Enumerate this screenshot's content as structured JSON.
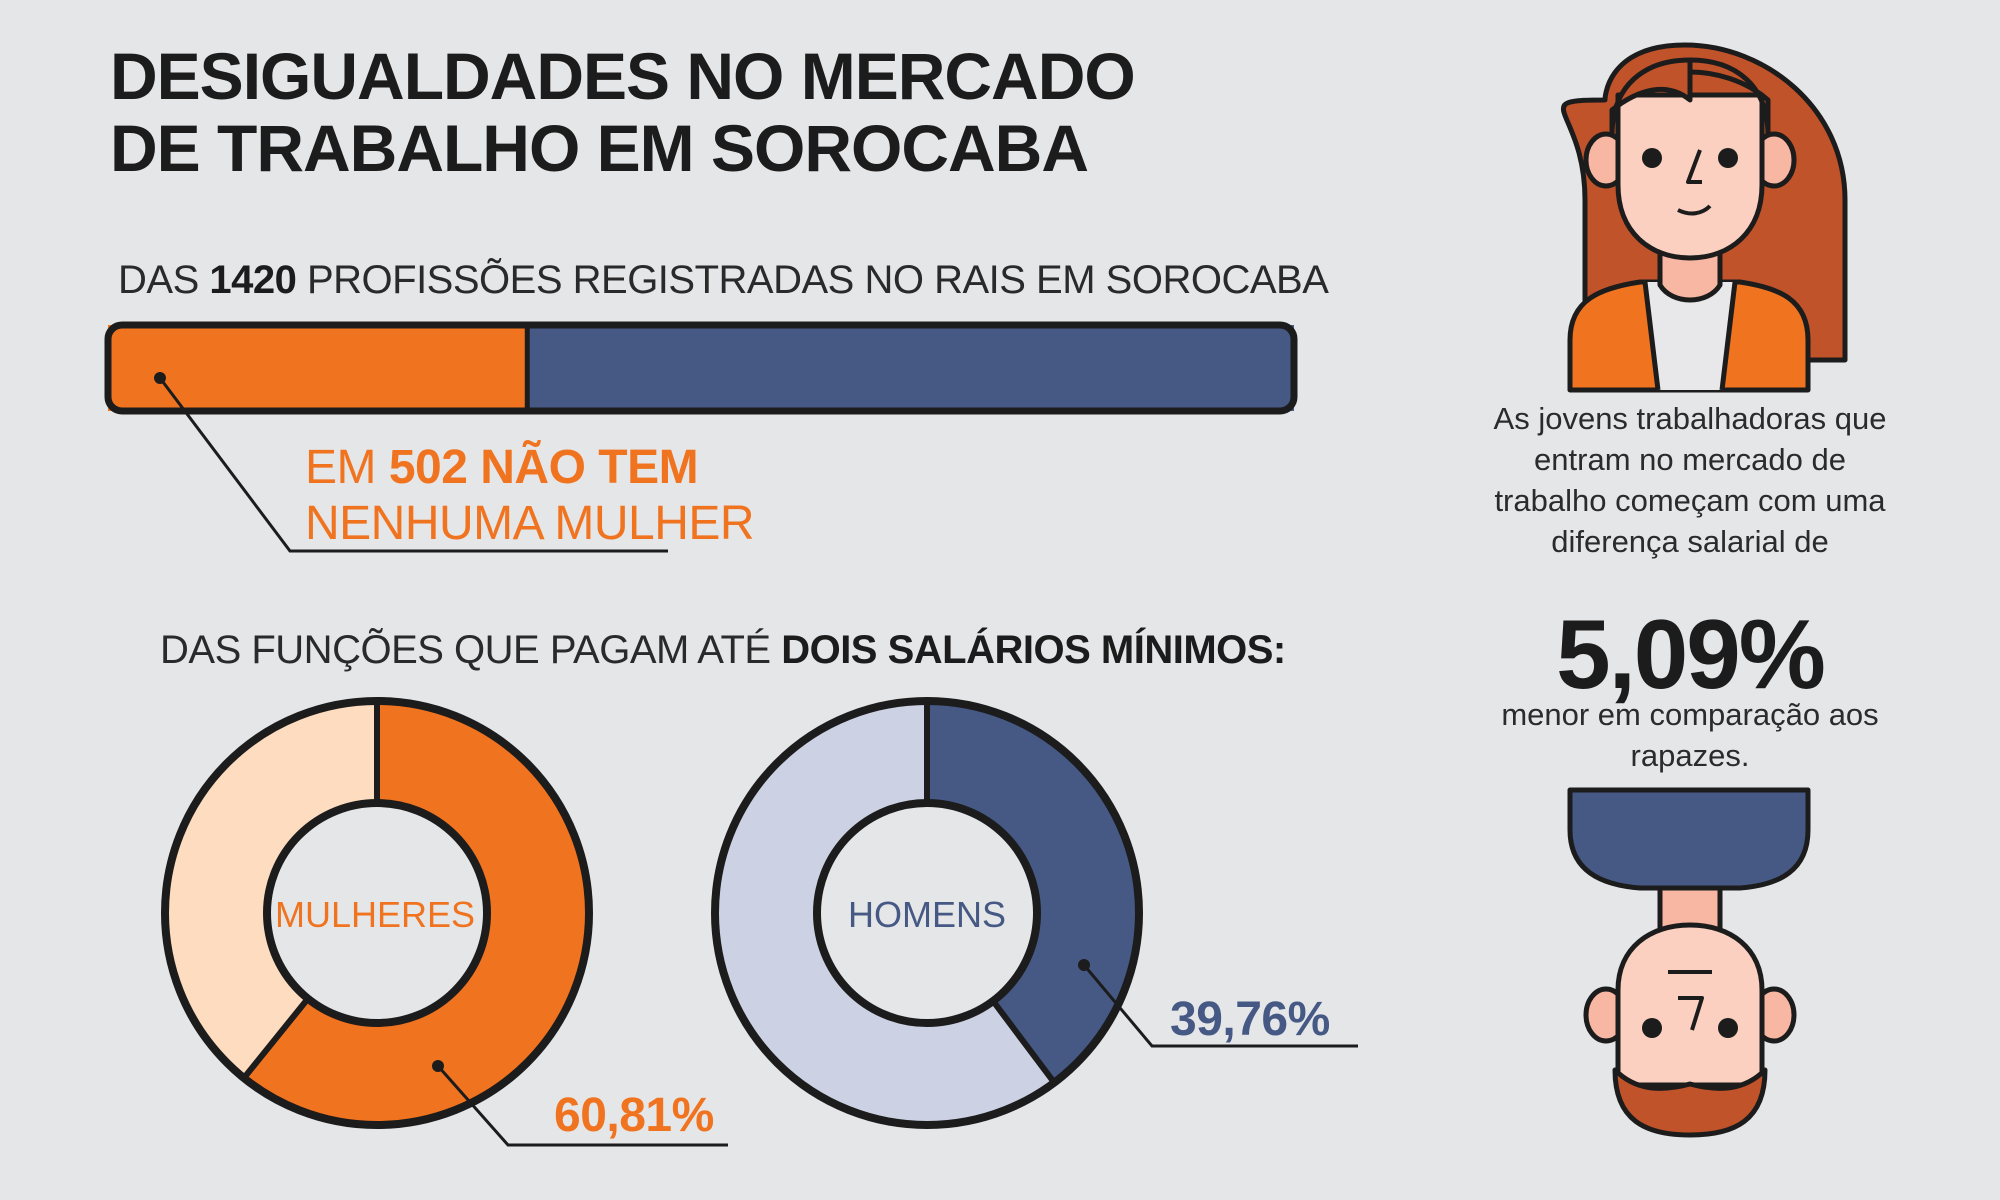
{
  "title": {
    "line1": "DESIGUALDADES NO MERCADO",
    "line2": "DE TRABALHO EM SOROCABA"
  },
  "professions": {
    "prefix": "DAS ",
    "total": "1420",
    "suffix": " PROFISSÕES REGISTRADAS NO  RAIS EM SOROCABA",
    "callout_prefix": "EM ",
    "callout_bold": "502 NÃO TEM",
    "callout_line2": "NENHUMA MULHER"
  },
  "functions": {
    "prefix": "DAS FUNÇÕES QUE PAGAM ATÉ ",
    "bold": "DOIS SALÁRIOS MÍNIMOS:"
  },
  "side": {
    "text": "As jovens trabalhadoras que entram no mercado de trabalho começam com uma diferença salarial de",
    "percent": "5,09%",
    "text2": "menor em comparação aos rapazes."
  },
  "colors": {
    "orange": "#f07320",
    "light_orange": "#fddcbf",
    "navy": "#465985",
    "light_navy": "#ccd2e3",
    "outline": "#1c1c1c"
  },
  "chart_data": [
    {
      "type": "bar",
      "title": "DAS 1420 PROFISSÕES REGISTRADAS NO  RAIS EM SOROCABA",
      "total": 1420,
      "values": [
        502,
        918
      ],
      "colors": [
        "#f07320",
        "#465985"
      ],
      "annotation": "EM 502 NÃO TEM NENHUMA MULHER"
    },
    {
      "type": "pie",
      "label": "MULHERES",
      "value_label": "60,81%",
      "values": [
        60.81,
        39.19
      ],
      "colors": [
        "#f07320",
        "#fddcbf"
      ]
    },
    {
      "type": "pie",
      "label": "HOMENS",
      "value_label": "39,76%",
      "values": [
        39.76,
        60.24
      ],
      "colors": [
        "#465985",
        "#ccd2e3"
      ]
    }
  ]
}
